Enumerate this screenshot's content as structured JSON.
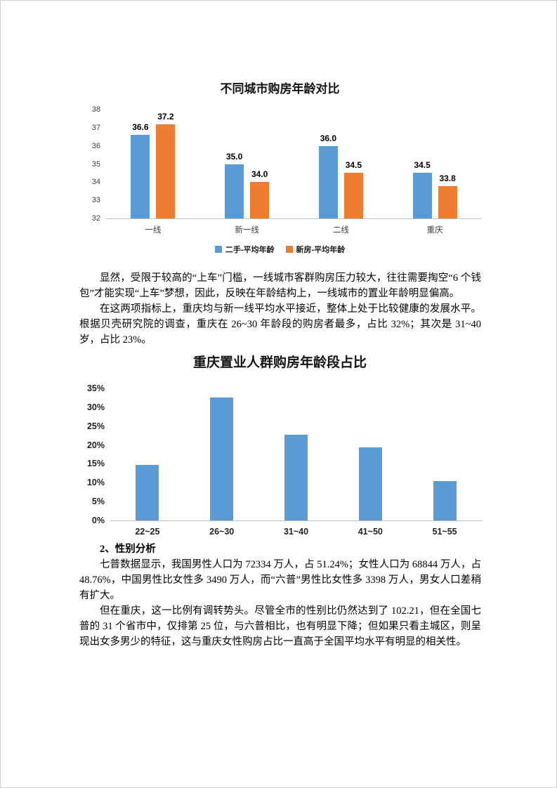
{
  "document": {
    "paragraphs": {
      "p1": "显然，受限于较高的“上车”门槛，一线城市客群购房压力较大，往往需要掏空“6 个钱包”才能实现“上车”梦想，因此，反映在年龄结构上，一线城市的置业年龄明显偏高。",
      "p2": "在这两项指标上，重庆均与新一线平均水平接近，整体上处于比较健康的发展水平。根据贝壳研究院的调查，重庆在 26~30 年龄段的购房者最多，占比 32%；其次是 31~40 岁，占比 23%。"
    },
    "section2": {
      "heading": "2、性别分析",
      "p1": "七普数据显示，我国男性人口为 72334 万人，占 51.24%；女性人口为 68844 万人，占48.76%，中国男性比女性多 3490 万人，而“六普”男性比女性多 3398 万人，男女人口差稍有扩大。",
      "p2": "但在重庆，这一比例有调转势头。尽管全市的性别比仍然达到了 102.21，但在全国七普的 31 个省市中，仅排第 25 位，与六普相比，也有明显下降；但如果只看主城区，则呈现出女多男少的特征，这与重庆女性购房占比一直高于全国平均水平有明显的相关性。"
    }
  },
  "chart_data": [
    {
      "type": "bar",
      "title": "不同城市购房年龄对比",
      "categories": [
        "一线",
        "新一线",
        "二线",
        "重庆"
      ],
      "series": [
        {
          "name": "二手-平均年龄",
          "color": "#5B9BD5",
          "values": [
            36.6,
            35.0,
            36.0,
            34.5
          ]
        },
        {
          "name": "新房-平均年龄",
          "color": "#ED7D31",
          "values": [
            37.2,
            34.0,
            34.5,
            33.8
          ]
        }
      ],
      "ylim": [
        32,
        38
      ],
      "yticks": [
        38,
        37,
        36,
        35,
        34,
        33,
        32
      ],
      "tick_suffix": "",
      "show_value_labels": true,
      "grid": false,
      "legend_position": "bottom"
    },
    {
      "type": "bar",
      "title": "重庆置业人群购房年龄段占比",
      "categories": [
        "22~25",
        "26~30",
        "31~40",
        "41~50",
        "51~55"
      ],
      "values": [
        14.8,
        32.5,
        22.8,
        19.3,
        10.5
      ],
      "bar_color": "#5B9BD5",
      "ylim": [
        0,
        35
      ],
      "yticks": [
        35,
        30,
        25,
        20,
        15,
        10,
        5,
        0
      ],
      "tick_suffix": "%",
      "show_value_labels": false,
      "grid": false,
      "legend_position": "none"
    }
  ]
}
